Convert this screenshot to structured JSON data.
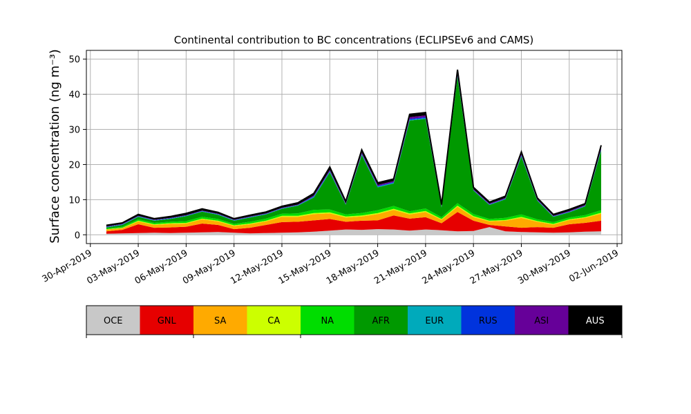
{
  "chart_data": {
    "type": "area",
    "stacked": true,
    "title": "Continental contribution to BC concentrations (ECLIPSEv6 and CAMS)",
    "ylabel": "Surface concentration (ng m⁻³)",
    "xlabel": "",
    "grid": true,
    "legend_placement": "bottom colorbar",
    "ylim": [
      -2.5,
      52.5
    ],
    "yticks": [
      0,
      10,
      20,
      30,
      40,
      50
    ],
    "xlim": [
      "2019-04-30",
      "2019-06-02"
    ],
    "xticks": [
      "30-Apr-2019",
      "03-May-2019",
      "06-May-2019",
      "09-May-2019",
      "12-May-2019",
      "15-May-2019",
      "18-May-2019",
      "21-May-2019",
      "24-May-2019",
      "27-May-2019",
      "30-May-2019",
      "02-Jun-2019"
    ],
    "x": [
      "2019-05-01",
      "2019-05-02",
      "2019-05-03",
      "2019-05-04",
      "2019-05-05",
      "2019-05-06",
      "2019-05-07",
      "2019-05-08",
      "2019-05-09",
      "2019-05-10",
      "2019-05-11",
      "2019-05-12",
      "2019-05-13",
      "2019-05-14",
      "2019-05-15",
      "2019-05-16",
      "2019-05-17",
      "2019-05-18",
      "2019-05-19",
      "2019-05-20",
      "2019-05-21",
      "2019-05-22",
      "2019-05-23",
      "2019-05-24",
      "2019-05-25",
      "2019-05-26",
      "2019-05-27",
      "2019-05-28",
      "2019-05-29",
      "2019-05-30",
      "2019-05-31",
      "2019-06-01"
    ],
    "series": [
      {
        "name": "OCE",
        "color": "#c8c8c8",
        "values": [
          0.3,
          0.4,
          0.5,
          0.6,
          0.5,
          0.6,
          0.7,
          0.8,
          0.6,
          0.4,
          0.5,
          0.6,
          0.7,
          0.9,
          1.2,
          1.5,
          1.4,
          1.6,
          1.5,
          1.2,
          1.5,
          1.3,
          1.0,
          1.1,
          2.2,
          1.0,
          0.8,
          0.7,
          0.6,
          0.7,
          0.9,
          1.0
        ]
      },
      {
        "name": "GNL",
        "color": "#e60000",
        "values": [
          0.7,
          1.0,
          2.5,
          1.4,
          1.6,
          1.7,
          2.5,
          2.0,
          1.0,
          1.6,
          2.3,
          3.0,
          3.0,
          3.2,
          3.3,
          2.2,
          2.6,
          2.5,
          4.0,
          3.4,
          3.5,
          2.0,
          5.5,
          2.9,
          0.6,
          1.4,
          1.2,
          1.5,
          1.4,
          2.3,
          2.5,
          3.0
        ]
      },
      {
        "name": "SA",
        "color": "#ffaa00",
        "values": [
          0.5,
          0.5,
          0.8,
          0.8,
          1.0,
          0.9,
          1.2,
          1.0,
          0.9,
          1.0,
          1.0,
          1.5,
          1.4,
          1.8,
          1.6,
          1.2,
          1.2,
          1.8,
          1.6,
          1.2,
          1.5,
          1.0,
          1.5,
          1.0,
          1.0,
          1.6,
          2.8,
          1.5,
          0.9,
          1.2,
          1.4,
          2.0
        ]
      },
      {
        "name": "CA",
        "color": "#ccff00",
        "values": [
          0.1,
          0.1,
          0.2,
          0.2,
          0.2,
          0.2,
          0.2,
          0.2,
          0.2,
          0.2,
          0.2,
          0.3,
          0.3,
          0.3,
          0.3,
          0.3,
          0.3,
          0.3,
          0.3,
          0.3,
          0.3,
          0.2,
          0.3,
          0.3,
          0.2,
          0.2,
          0.3,
          0.2,
          0.2,
          0.2,
          0.2,
          0.3
        ]
      },
      {
        "name": "NA",
        "color": "#00dd00",
        "values": [
          0.2,
          0.3,
          0.4,
          0.4,
          0.4,
          0.5,
          0.5,
          0.5,
          0.4,
          0.5,
          0.6,
          0.6,
          0.7,
          0.9,
          0.8,
          0.6,
          0.7,
          0.8,
          0.8,
          0.6,
          0.7,
          0.5,
          0.7,
          0.6,
          0.5,
          0.6,
          0.7,
          0.5,
          0.5,
          0.5,
          0.6,
          0.7
        ]
      },
      {
        "name": "AFR",
        "color": "#009900",
        "values": [
          0.3,
          0.5,
          0.7,
          0.6,
          0.8,
          1.4,
          1.5,
          1.2,
          0.9,
          1.2,
          1.2,
          1.4,
          2.2,
          3.5,
          10.6,
          2.8,
          16.5,
          6.5,
          6.4,
          25.8,
          25.5,
          2.8,
          36.0,
          6.7,
          4.0,
          5.3,
          16.5,
          5.3,
          1.5,
          1.5,
          2.5,
          17.0
        ]
      },
      {
        "name": "EUR",
        "color": "#00aabb",
        "values": [
          0.1,
          0.1,
          0.1,
          0.1,
          0.1,
          0.1,
          0.1,
          0.1,
          0.1,
          0.1,
          0.1,
          0.1,
          0.1,
          0.2,
          0.2,
          0.1,
          0.2,
          0.2,
          0.2,
          0.2,
          0.2,
          0.1,
          0.2,
          0.1,
          0.1,
          0.1,
          0.2,
          0.1,
          0.1,
          0.1,
          0.1,
          0.2
        ]
      },
      {
        "name": "RUS",
        "color": "#0033dd",
        "values": [
          0.1,
          0.1,
          0.1,
          0.1,
          0.1,
          0.1,
          0.1,
          0.1,
          0.1,
          0.1,
          0.1,
          0.1,
          0.1,
          0.2,
          0.2,
          0.1,
          0.2,
          0.2,
          0.2,
          0.3,
          0.3,
          0.1,
          0.3,
          0.1,
          0.1,
          0.1,
          0.2,
          0.1,
          0.1,
          0.1,
          0.1,
          0.2
        ]
      },
      {
        "name": "ASI",
        "color": "#660099",
        "values": [
          0.1,
          0.1,
          0.1,
          0.1,
          0.1,
          0.1,
          0.1,
          0.1,
          0.1,
          0.1,
          0.1,
          0.1,
          0.1,
          0.2,
          0.3,
          0.2,
          0.3,
          0.3,
          0.3,
          0.5,
          0.5,
          0.2,
          0.6,
          0.2,
          0.2,
          0.2,
          0.3,
          0.2,
          0.1,
          0.2,
          0.2,
          0.3
        ]
      },
      {
        "name": "AUS",
        "color": "#000000",
        "values": [
          0.3,
          0.3,
          0.4,
          0.3,
          0.4,
          0.5,
          0.5,
          0.4,
          0.3,
          0.4,
          0.4,
          0.4,
          0.5,
          0.6,
          0.8,
          0.5,
          0.8,
          0.6,
          0.6,
          0.8,
          0.8,
          0.4,
          0.9,
          0.5,
          0.4,
          0.5,
          0.6,
          0.4,
          0.4,
          0.4,
          0.4,
          0.8
        ]
      }
    ]
  }
}
